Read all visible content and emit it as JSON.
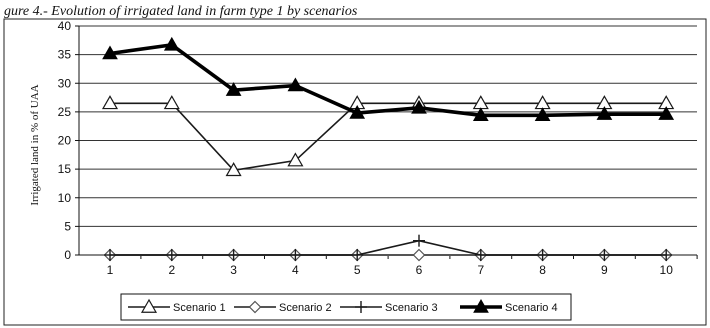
{
  "caption": "gure 4.- Evolution of irrigated land in farm type 1 by scenarios",
  "chart_data": {
    "type": "line",
    "ylabel": "Irrigated land in % of UAA",
    "xlabel": "",
    "categories": [
      "1",
      "2",
      "3",
      "4",
      "5",
      "6",
      "7",
      "8",
      "9",
      "10"
    ],
    "ylim": [
      0,
      40
    ],
    "yticks": [
      0,
      5,
      10,
      15,
      20,
      25,
      30,
      35,
      40
    ],
    "grid": "horizontal",
    "legend_position": "bottom",
    "series": [
      {
        "name": "Scenario 1",
        "marker": "open-triangle",
        "color": "#1a1a1a",
        "values": [
          26.5,
          26.5,
          14.8,
          16.5,
          26.5,
          26.5,
          26.5,
          26.5,
          26.5,
          26.5
        ]
      },
      {
        "name": "Scenario 2",
        "marker": "open-diamond",
        "color": "#555555",
        "values": [
          0,
          0,
          0,
          0,
          0,
          0,
          0,
          0,
          0,
          0
        ]
      },
      {
        "name": "Scenario 3",
        "marker": "plus",
        "color": "#1a1a1a",
        "values": [
          0,
          0,
          0,
          0,
          0,
          2.5,
          0,
          0,
          0,
          0
        ]
      },
      {
        "name": "Scenario 4",
        "marker": "filled-triangle",
        "color": "#000000",
        "values": [
          35.2,
          36.7,
          28.8,
          29.6,
          24.8,
          25.7,
          24.4,
          24.4,
          24.6,
          24.6
        ]
      }
    ]
  }
}
